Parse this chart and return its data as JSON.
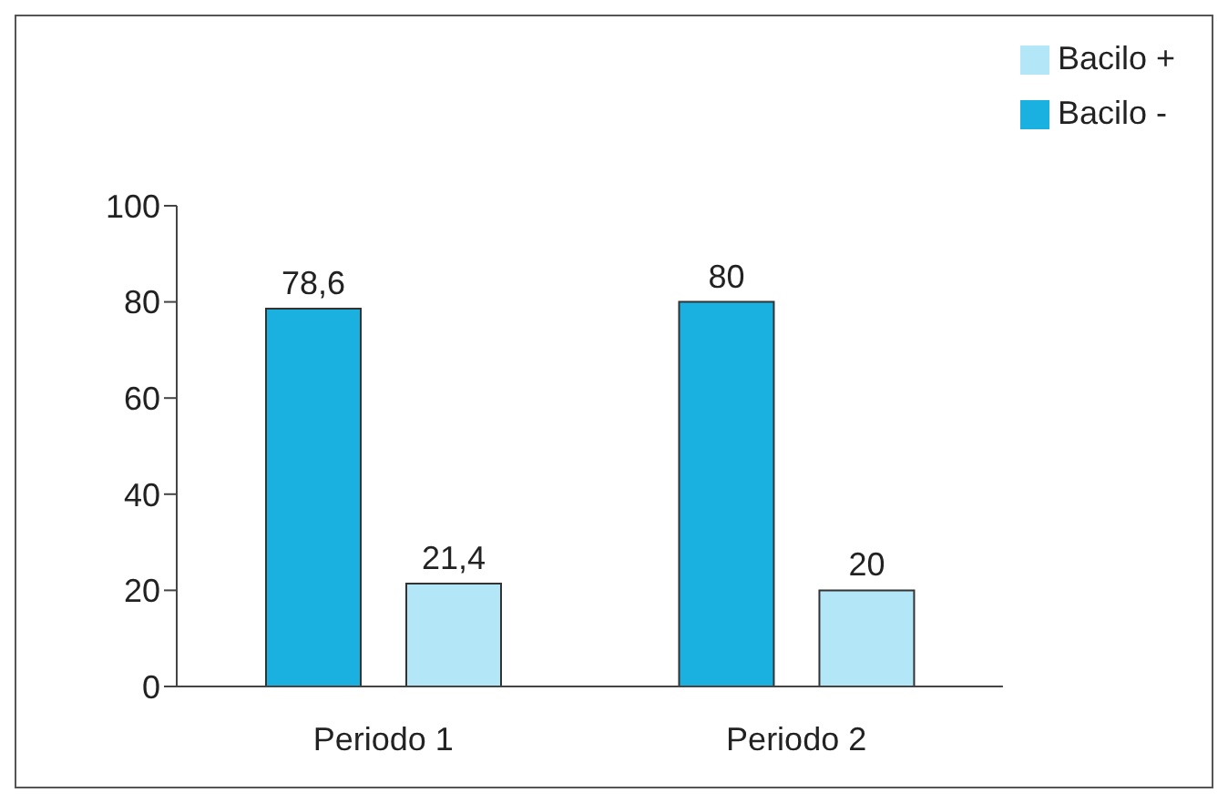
{
  "chart_data": {
    "type": "bar",
    "categories": [
      "Periodo 1",
      "Periodo 2"
    ],
    "series": [
      {
        "name": "Bacilo -",
        "color": "#1ab0e0",
        "values": [
          78.6,
          80
        ],
        "value_labels": [
          "78,6",
          "80"
        ]
      },
      {
        "name": "Bacilo +",
        "color": "#b3e6f7",
        "values": [
          21.4,
          20
        ],
        "value_labels": [
          "21,4",
          "20"
        ]
      }
    ],
    "ylim": [
      0,
      100
    ],
    "yticks": [
      0,
      20,
      40,
      60,
      80,
      100
    ],
    "grid": false,
    "legend": "top right"
  }
}
